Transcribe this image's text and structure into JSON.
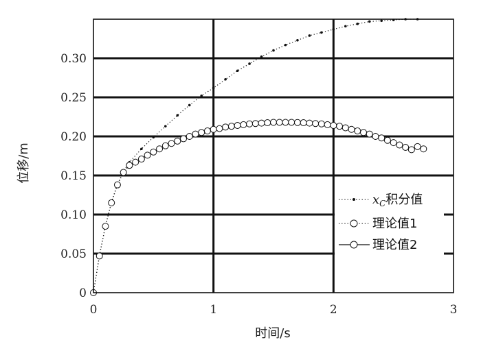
{
  "chart_data": {
    "type": "line",
    "xlabel": "时间/s",
    "ylabel": "位移/m",
    "xlim": [
      0,
      3
    ],
    "ylim": [
      0,
      0.35
    ],
    "x_ticks": [
      "0",
      "1",
      "2",
      "3"
    ],
    "y_ticks": [
      "0",
      "0.05",
      "0.10",
      "0.15",
      "0.20",
      "0.25",
      "0.30"
    ],
    "grid": true,
    "legend_position": "bottom-right",
    "series": [
      {
        "name_math": "x",
        "name_math_sub": "C",
        "name": "积分值",
        "style": "dotted-small-dots",
        "x": [
          0,
          0.05,
          0.1,
          0.15,
          0.2,
          0.25,
          0.3,
          0.4,
          0.5,
          0.6,
          0.7,
          0.8,
          0.9,
          1.0,
          1.1,
          1.2,
          1.3,
          1.4,
          1.5,
          1.6,
          1.7,
          1.8,
          1.9,
          2.0,
          2.1,
          2.2,
          2.3,
          2.4,
          2.5,
          2.6,
          2.7
        ],
        "y": [
          0,
          0.048,
          0.086,
          0.116,
          0.139,
          0.155,
          0.167,
          0.184,
          0.199,
          0.213,
          0.227,
          0.24,
          0.252,
          0.262,
          0.273,
          0.284,
          0.293,
          0.302,
          0.31,
          0.317,
          0.323,
          0.329,
          0.333,
          0.337,
          0.341,
          0.344,
          0.347,
          0.348,
          0.349,
          0.35,
          0.35
        ]
      },
      {
        "name": "理论值1",
        "style": "dotted-open-circles",
        "x": [
          0,
          0.05,
          0.1,
          0.15,
          0.2,
          0.25,
          0.3
        ],
        "y": [
          0,
          0.047,
          0.085,
          0.115,
          0.138,
          0.154,
          0.163
        ]
      },
      {
        "name": "理论值2",
        "style": "solid-open-circles",
        "x": [
          0.3,
          0.35,
          0.4,
          0.45,
          0.5,
          0.55,
          0.6,
          0.65,
          0.7,
          0.75,
          0.8,
          0.85,
          0.9,
          0.95,
          1.0,
          1.05,
          1.1,
          1.15,
          1.2,
          1.25,
          1.3,
          1.35,
          1.4,
          1.45,
          1.5,
          1.55,
          1.6,
          1.65,
          1.7,
          1.75,
          1.8,
          1.85,
          1.9,
          1.95,
          2.0,
          2.05,
          2.1,
          2.15,
          2.2,
          2.25,
          2.3,
          2.35,
          2.4,
          2.45,
          2.5,
          2.55,
          2.6,
          2.65,
          2.7,
          2.75
        ],
        "y": [
          0.163,
          0.167,
          0.171,
          0.176,
          0.18,
          0.184,
          0.188,
          0.191,
          0.194,
          0.197,
          0.2,
          0.203,
          0.205,
          0.207,
          0.209,
          0.21,
          0.212,
          0.213,
          0.214,
          0.215,
          0.216,
          0.2165,
          0.217,
          0.2175,
          0.218,
          0.218,
          0.218,
          0.218,
          0.2178,
          0.2175,
          0.217,
          0.2165,
          0.216,
          0.215,
          0.214,
          0.213,
          0.211,
          0.209,
          0.207,
          0.205,
          0.203,
          0.2,
          0.198,
          0.195,
          0.192,
          0.189,
          0.186,
          0.183,
          0.187,
          0.184
        ]
      }
    ]
  }
}
